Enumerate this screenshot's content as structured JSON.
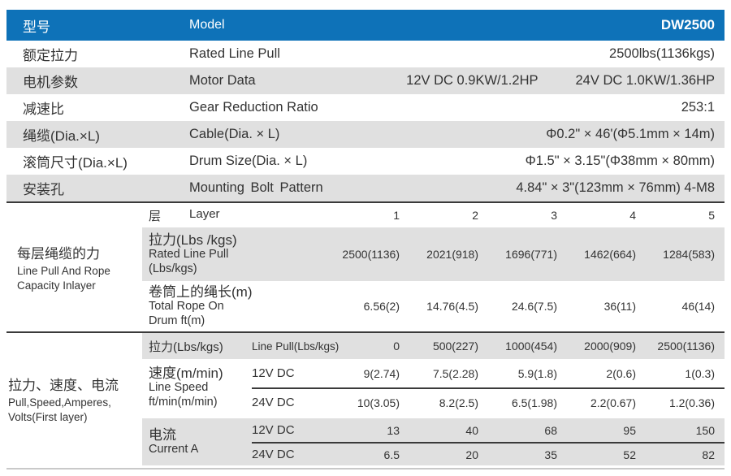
{
  "colors": {
    "accent": "#0e72b8",
    "stripe": "#e0e0e0",
    "rule": "#3a3a3a"
  },
  "header": {
    "zh": "型号",
    "en": "Model",
    "value": "DW2500"
  },
  "specs": [
    {
      "zh": "额定拉力",
      "en": "Rated Line Pull",
      "value1": "2500lbs(1136kgs)",
      "value2": ""
    },
    {
      "zh": "电机参数",
      "en": "Motor Data",
      "value1": "12V DC 0.9KW/1.2HP",
      "value2": "24V DC 1.0KW/1.36HP"
    },
    {
      "zh": "减速比",
      "en": "Gear Reduction Ratio",
      "value1": "253:1",
      "value2": ""
    },
    {
      "zh": "绳缆(Dia.×L)",
      "en": "Cable(Dia. × L)",
      "value1": "Φ0.2\" × 46'(Φ5.1mm × 14m)",
      "value2": ""
    },
    {
      "zh": "滚筒尺寸(Dia.×L)",
      "en": "Drum Size(Dia. × L)",
      "value1": "Φ1.5\" × 3.15\"(Φ38mm × 80mm)",
      "value2": ""
    },
    {
      "zh": "安装孔",
      "en": "Mounting Bolt Pattern",
      "value1": "4.84\" × 3\"(123mm × 76mm) 4-M8",
      "value2": ""
    }
  ],
  "layer_section": {
    "group_zh": "每层绳缆的力",
    "group_en1": "Line Pull And Rope",
    "group_en2": "Capacity Inlayer",
    "layer_zh": "层",
    "layer_en": "Layer",
    "layers": [
      "1",
      "2",
      "3",
      "4",
      "5"
    ],
    "pull_zh": "拉力(Lbs /kgs)",
    "pull_en1": "Rated Line Pull",
    "pull_en2": "(Lbs/kgs)",
    "pull_values": [
      "2500(1136)",
      "2021(918)",
      "1696(771)",
      "1462(664)",
      "1284(583)"
    ],
    "rope_zh": "卷筒上的绳长(m)",
    "rope_en1": "Total Rope On",
    "rope_en2": "Drum ft(m)",
    "rope_values": [
      "6.56(2)",
      "14.76(4.5)",
      "24.6(7.5)",
      "36(11)",
      "46(14)"
    ]
  },
  "performance_section": {
    "group_zh": "拉力、速度、电流",
    "group_en1": "Pull,Speed,Amperes,",
    "group_en2": "Volts(First layer)",
    "linepull_zh": "拉力(Lbs/kgs)",
    "linepull_en": "Line Pull(Lbs/kgs)",
    "linepull_values": [
      "0",
      "500(227)",
      "1000(454)",
      "2000(909)",
      "2500(1136)"
    ],
    "speed_zh": "速度(m/min)",
    "speed_en1": "Line Speed",
    "speed_en2": "ft/min(m/min)",
    "speed_rows": [
      {
        "voltage": "12V DC",
        "values": [
          "9(2.74)",
          "7.5(2.28)",
          "5.9(1.8)",
          "2(0.6)",
          "1(0.3)"
        ]
      },
      {
        "voltage": "24V DC",
        "values": [
          "10(3.05)",
          "8.2(2.5)",
          "6.5(1.98)",
          "2.2(0.67)",
          "1.2(0.36)"
        ]
      }
    ],
    "current_zh": "电流",
    "current_en": "Current A",
    "current_rows": [
      {
        "voltage": "12V DC",
        "values": [
          "13",
          "40",
          "68",
          "95",
          "150"
        ]
      },
      {
        "voltage": "24V DC",
        "values": [
          "6.5",
          "20",
          "35",
          "52",
          "82"
        ]
      }
    ]
  }
}
